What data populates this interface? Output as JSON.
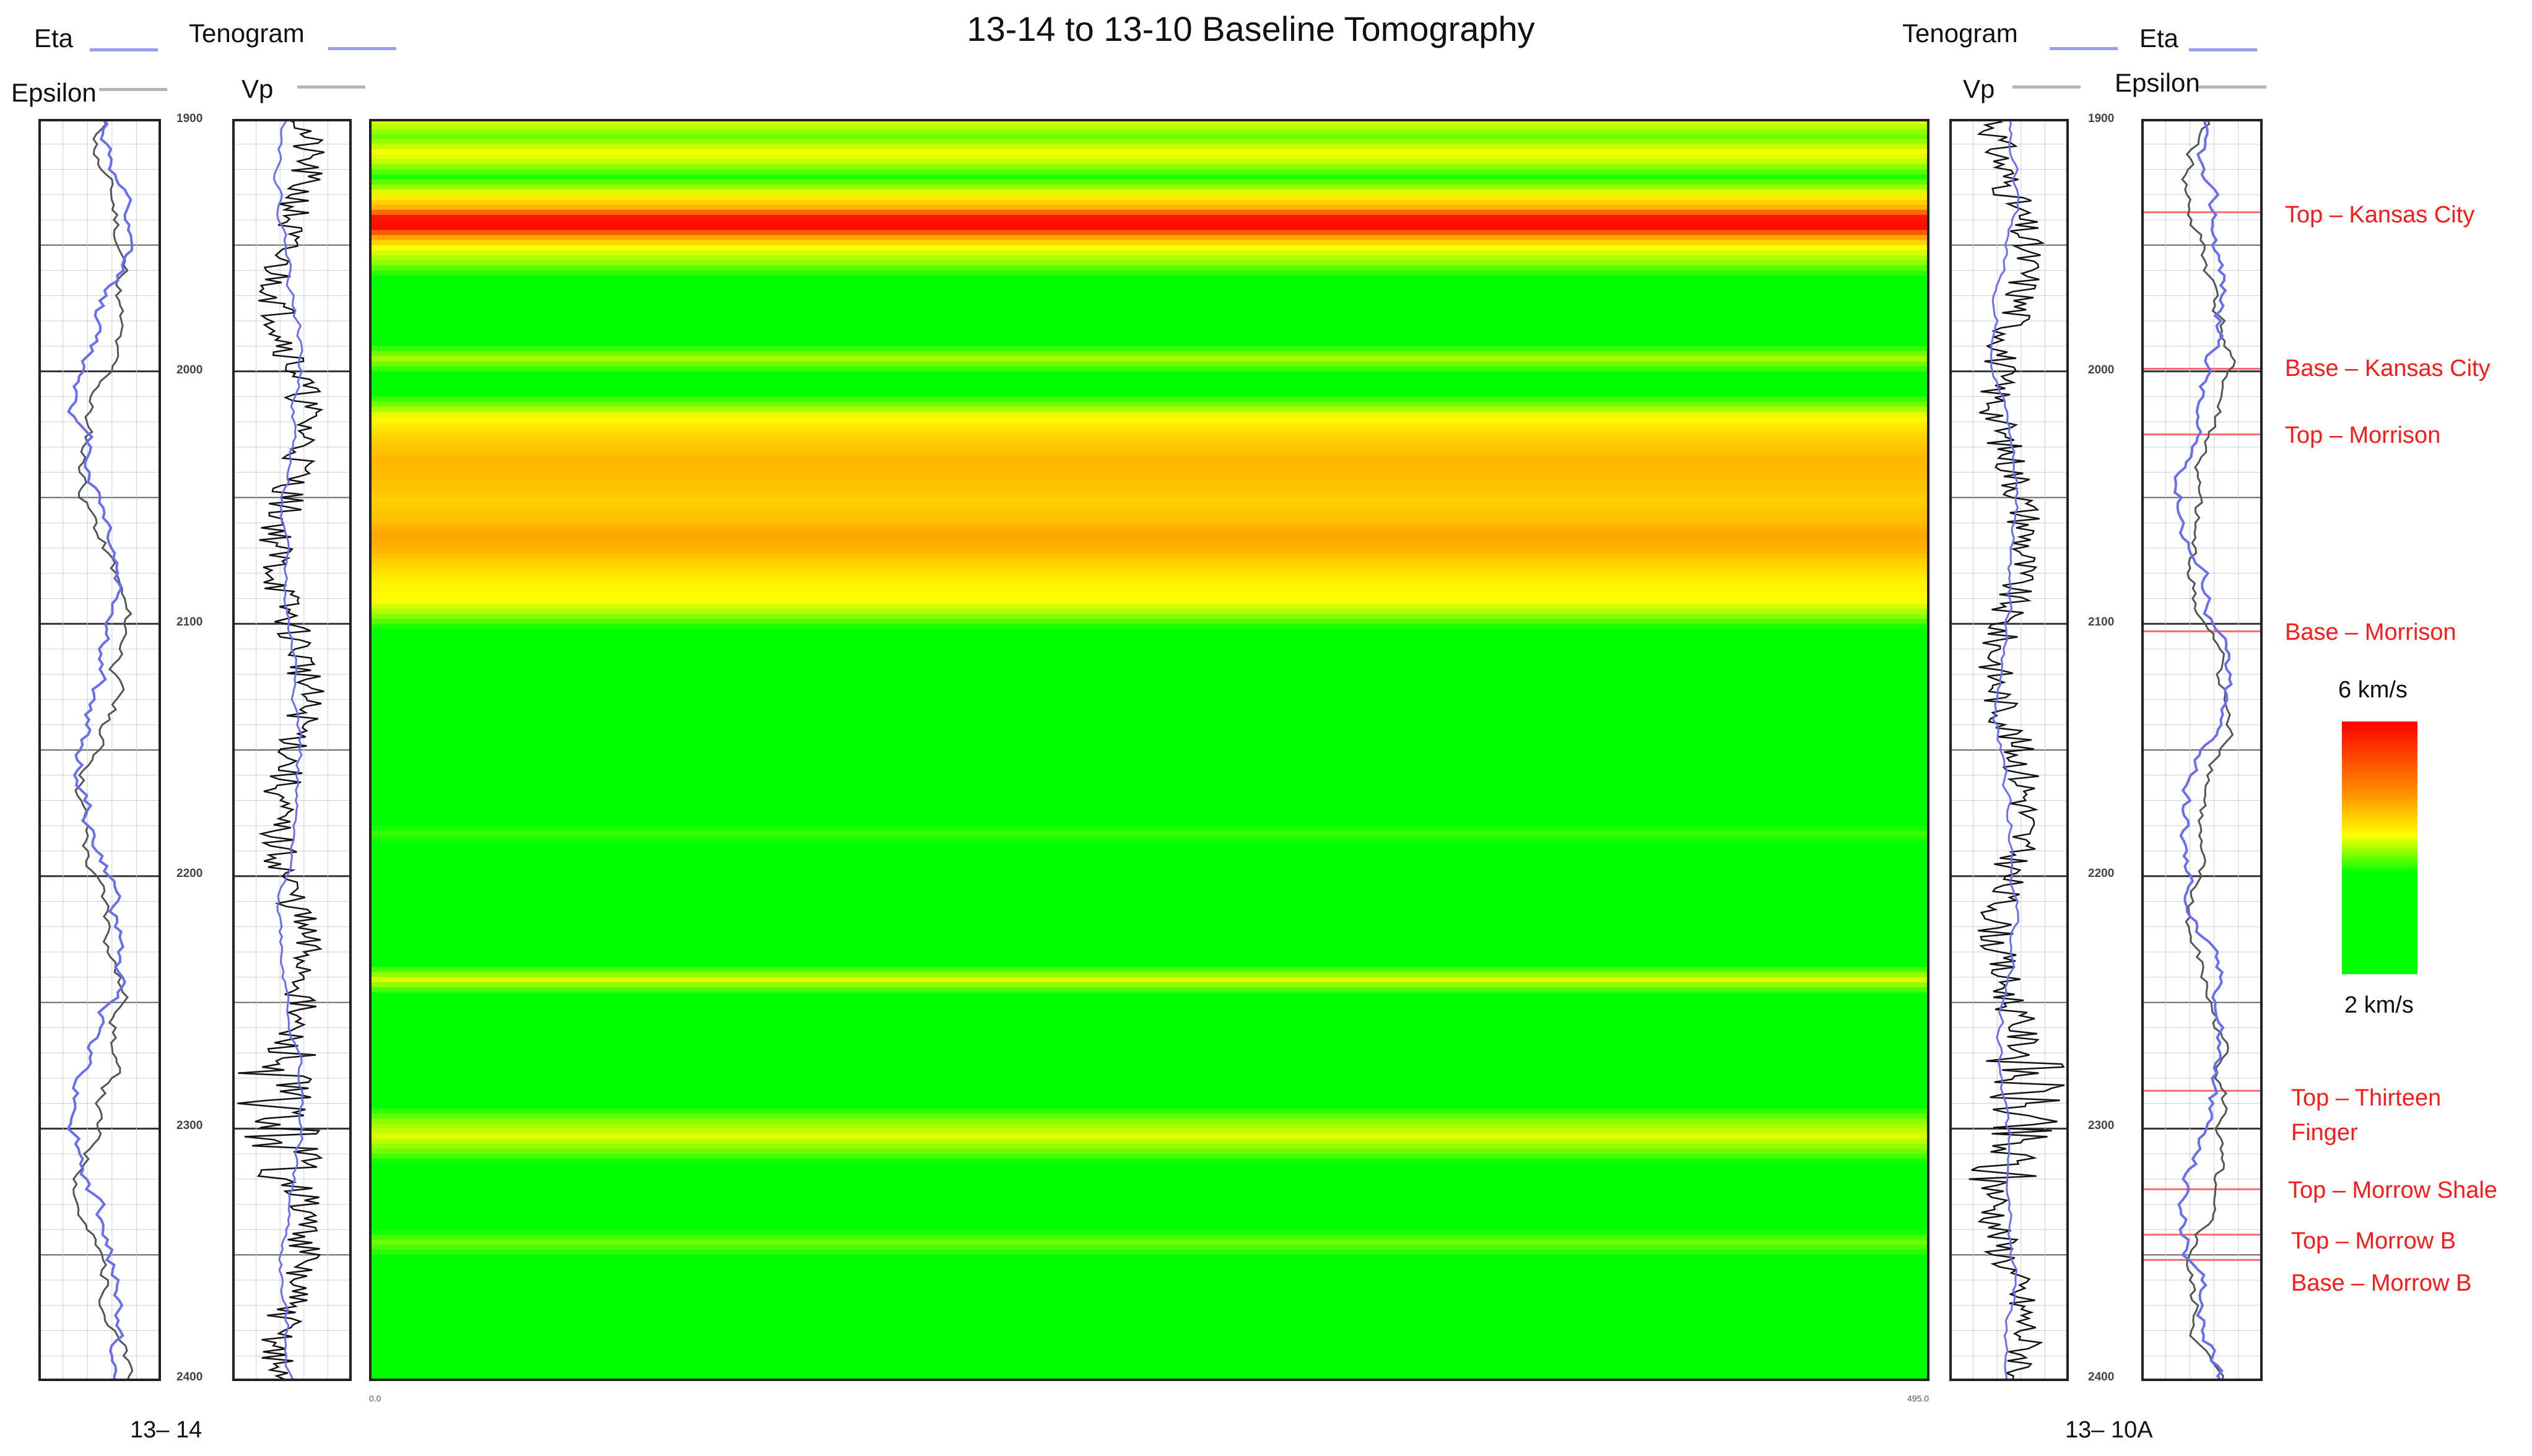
{
  "title": "13-14 to 13-10 Baseline Tomography",
  "left_well": {
    "name": "13– 14",
    "headers": {
      "eta": "Eta",
      "epsilon": "Epsilon",
      "tenogram": "Tenogram",
      "vp": "Vp"
    }
  },
  "right_well": {
    "name": "13– 10A",
    "headers": {
      "eta": "Eta",
      "epsilon": "Epsilon",
      "tenogram": "Tenogram",
      "vp": "Vp"
    }
  },
  "depth_ticks": [
    "1900",
    "2000",
    "2100",
    "2200",
    "2300",
    "2400"
  ],
  "x_axis_ticks": [
    "0.0",
    "495.0"
  ],
  "colorbar": {
    "max_label": "6 km/s",
    "min_label": "2 km/s",
    "colors": [
      "#ff0000",
      "#ff9900",
      "#ffff00",
      "#00ff00"
    ]
  },
  "formations": [
    {
      "name": "Top – Kansas City",
      "depth": 1937
    },
    {
      "name": "Base – Kansas City",
      "depth": 1999
    },
    {
      "name": "Top – Morrison",
      "depth": 2025
    },
    {
      "name": "Base – Morrison",
      "depth": 2103
    },
    {
      "name": "Top – Thirteen Finger",
      "depth": 2285
    },
    {
      "name": "Top – Morrow Shale",
      "depth": 2324
    },
    {
      "name": "Top – Morrow B",
      "depth": 2342
    },
    {
      "name": "Base – Morrow B",
      "depth": 2352
    }
  ],
  "chart_data": {
    "type": "heatmap",
    "title": "13-14 to 13-10 Baseline Tomography",
    "ylim": [
      1900,
      2400
    ],
    "xlim": [
      0.0,
      495.0
    ],
    "colorbar_range_km_s": [
      2,
      6
    ],
    "layers_depth_velocity_km_s": [
      [
        1900,
        3.4
      ],
      [
        1906,
        3.0
      ],
      [
        1912,
        3.5
      ],
      [
        1916,
        3.3
      ],
      [
        1922,
        2.7
      ],
      [
        1928,
        3.4
      ],
      [
        1934,
        4.4
      ],
      [
        1938,
        5.8
      ],
      [
        1942,
        5.9
      ],
      [
        1946,
        4.6
      ],
      [
        1950,
        3.5
      ],
      [
        1956,
        3.1
      ],
      [
        1962,
        2.6
      ],
      [
        1970,
        2.5
      ],
      [
        1978,
        2.4
      ],
      [
        1983,
        2.2
      ],
      [
        1988,
        2.6
      ],
      [
        1994,
        3.2
      ],
      [
        2000,
        2.6
      ],
      [
        2006,
        2.4
      ],
      [
        2012,
        3.0
      ],
      [
        2018,
        3.6
      ],
      [
        2026,
        4.1
      ],
      [
        2034,
        4.4
      ],
      [
        2042,
        4.3
      ],
      [
        2050,
        4.1
      ],
      [
        2058,
        4.3
      ],
      [
        2064,
        4.6
      ],
      [
        2070,
        4.4
      ],
      [
        2076,
        4.0
      ],
      [
        2082,
        3.7
      ],
      [
        2090,
        3.5
      ],
      [
        2096,
        3.1
      ],
      [
        2100,
        2.7
      ],
      [
        2106,
        2.2
      ],
      [
        2140,
        2.1
      ],
      [
        2150,
        2.3
      ],
      [
        2160,
        2.1
      ],
      [
        2176,
        2.4
      ],
      [
        2182,
        2.8
      ],
      [
        2188,
        2.5
      ],
      [
        2194,
        2.2
      ],
      [
        2200,
        2.4
      ],
      [
        2206,
        2.1
      ],
      [
        2228,
        2.2
      ],
      [
        2234,
        2.6
      ],
      [
        2240,
        3.4
      ],
      [
        2246,
        2.6
      ],
      [
        2252,
        2.2
      ],
      [
        2256,
        2.6
      ],
      [
        2262,
        2.3
      ],
      [
        2270,
        2.1
      ],
      [
        2290,
        2.6
      ],
      [
        2296,
        3.1
      ],
      [
        2302,
        3.4
      ],
      [
        2308,
        3.0
      ],
      [
        2314,
        2.5
      ],
      [
        2320,
        2.1
      ],
      [
        2338,
        2.5
      ],
      [
        2344,
        3.0
      ],
      [
        2350,
        2.6
      ],
      [
        2356,
        2.2
      ],
      [
        2366,
        2.1
      ],
      [
        2400,
        2.1
      ]
    ]
  }
}
